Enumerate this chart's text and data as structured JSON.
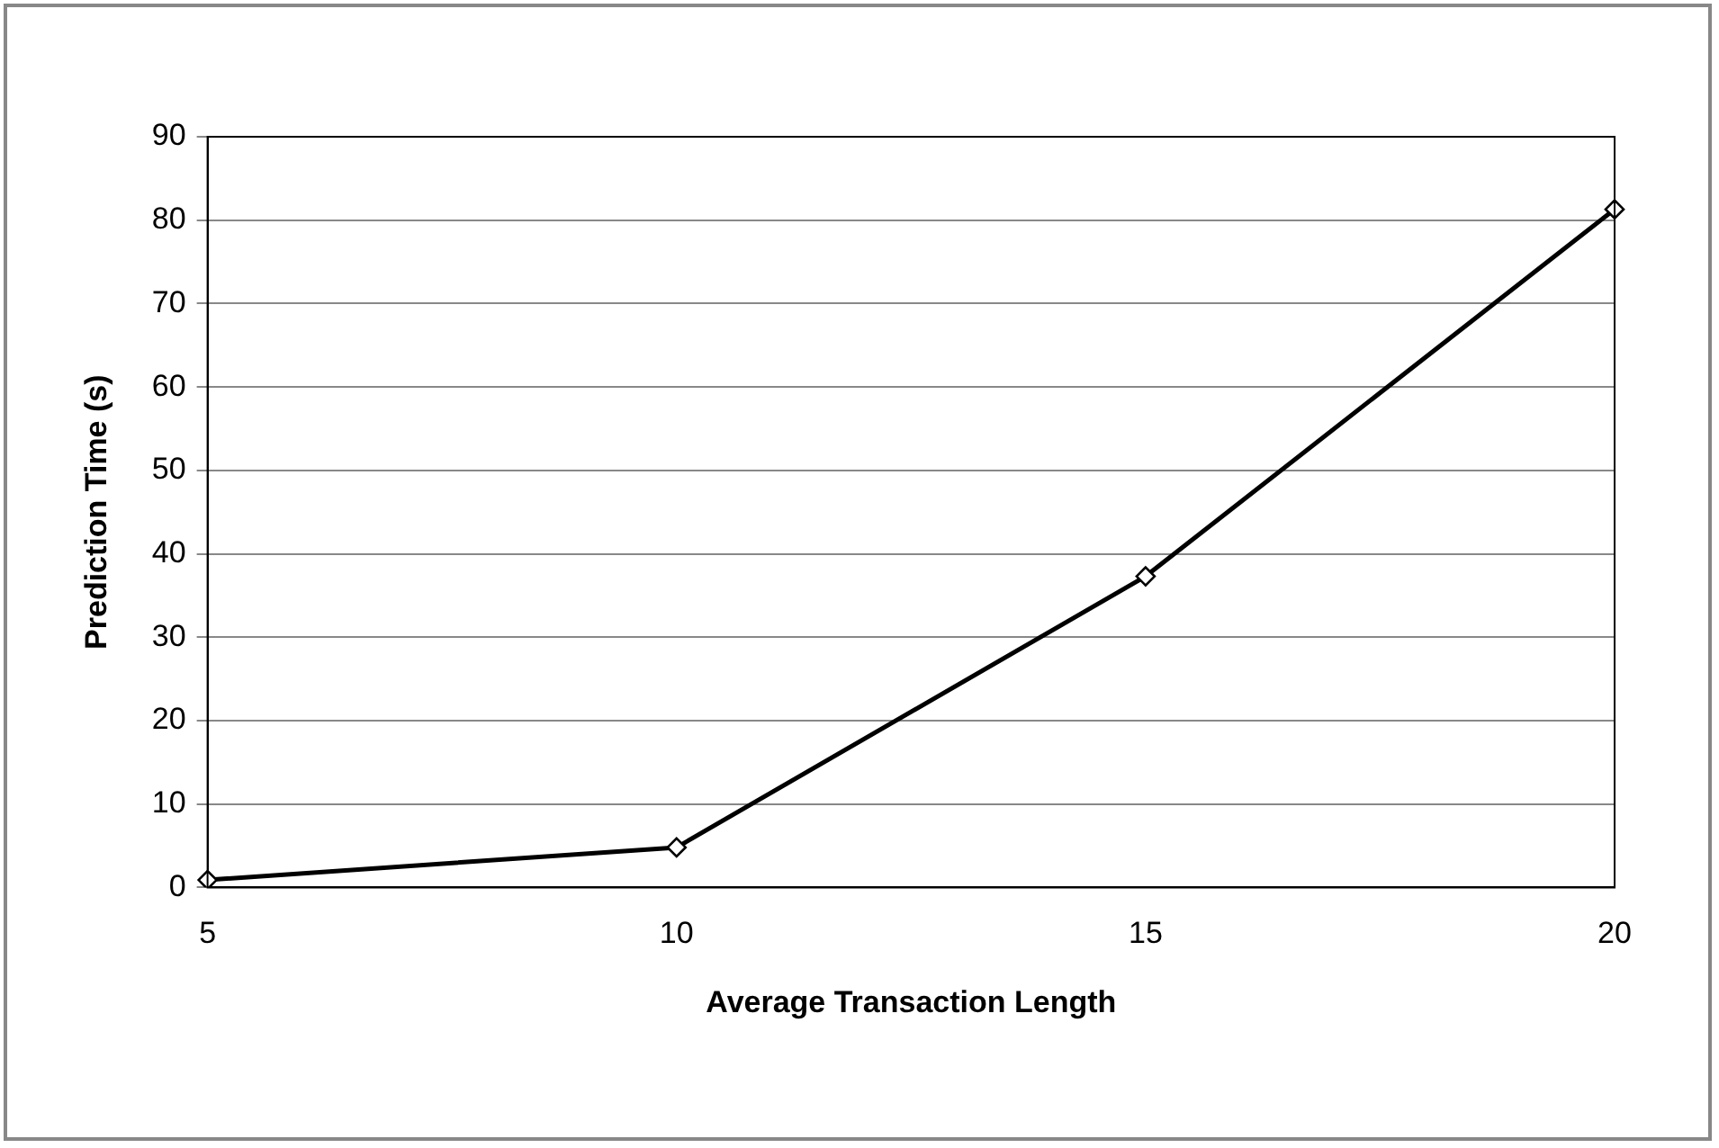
{
  "chart_data": {
    "type": "line",
    "xlabel": "Average Transaction Length",
    "ylabel": "Prediction Time (s)",
    "categories": [
      "5",
      "10",
      "15",
      "20"
    ],
    "series": [
      {
        "color": "#000000",
        "values": [
          0.9,
          4.8,
          37.3,
          81.3
        ]
      }
    ],
    "ylim": [
      0,
      90
    ],
    "yticks": [
      0,
      10,
      20,
      30,
      40,
      50,
      60,
      70,
      80,
      90
    ],
    "grid": "y",
    "legend": false,
    "marker": "diamond",
    "line_style": "solid"
  }
}
